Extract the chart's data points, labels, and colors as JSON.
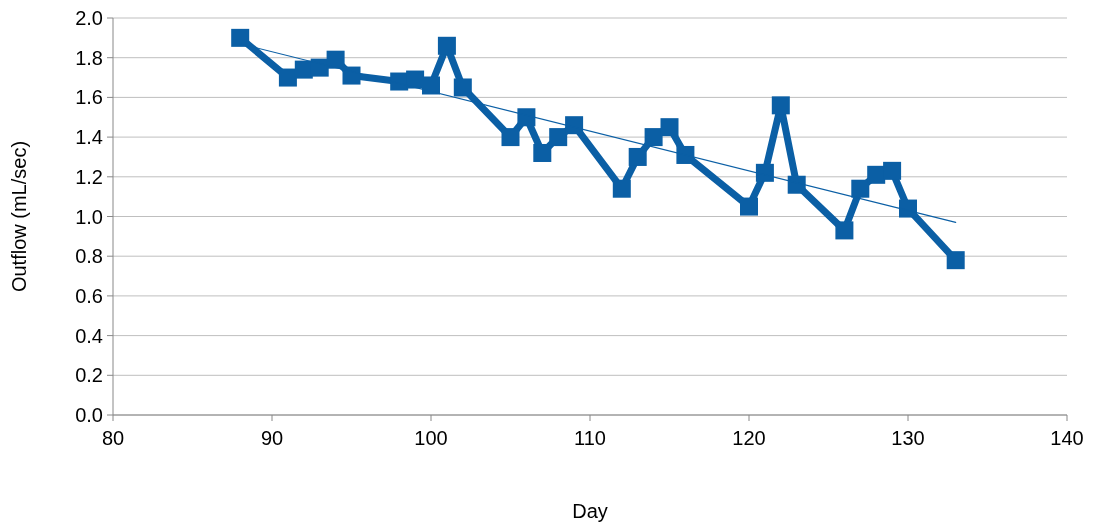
{
  "chart_data": {
    "type": "line",
    "xlabel": "Day",
    "ylabel": "Outflow (mL/sec)",
    "xlim": [
      80,
      140
    ],
    "xticks": [
      80,
      90,
      100,
      110,
      120,
      130,
      140
    ],
    "ylim": [
      0,
      2
    ],
    "yticks": [
      {
        "value": 0,
        "label": "0.0"
      },
      {
        "value": 0.2,
        "label": "0.2"
      },
      {
        "value": 0.4,
        "label": "0.4"
      },
      {
        "value": 0.6,
        "label": "0.6"
      },
      {
        "value": 0.8,
        "label": "0.8"
      },
      {
        "value": 1,
        "label": "1.0"
      },
      {
        "value": 1.2,
        "label": "1.2"
      },
      {
        "value": 1.4,
        "label": "1.4"
      },
      {
        "value": 1.6,
        "label": "1.6"
      },
      {
        "value": 1.8,
        "label": "1.8"
      },
      {
        "value": 2,
        "label": "2.0"
      }
    ],
    "grid": "y",
    "series": [
      {
        "color": "#0b5fa5",
        "marker": "square",
        "x": [
          88,
          91,
          92,
          93,
          94,
          95,
          98,
          99,
          100,
          101,
          102,
          105,
          106,
          107,
          108,
          109,
          112,
          113,
          114,
          115,
          116,
          120,
          121,
          122,
          123,
          126,
          127,
          128,
          129,
          130,
          133
        ],
        "values": [
          1.9,
          1.7,
          1.74,
          1.75,
          1.79,
          1.71,
          1.68,
          1.69,
          1.66,
          1.86,
          1.65,
          1.4,
          1.5,
          1.32,
          1.4,
          1.46,
          1.14,
          1.3,
          1.4,
          1.45,
          1.31,
          1.05,
          1.22,
          1.56,
          1.16,
          0.93,
          1.14,
          1.21,
          1.23,
          1.04,
          0.78
        ]
      },
      {
        "type": "line",
        "color": "#0b5fa5",
        "marker": "none",
        "x": [
          88,
          133
        ],
        "values": [
          1.87,
          0.97
        ]
      }
    ]
  }
}
